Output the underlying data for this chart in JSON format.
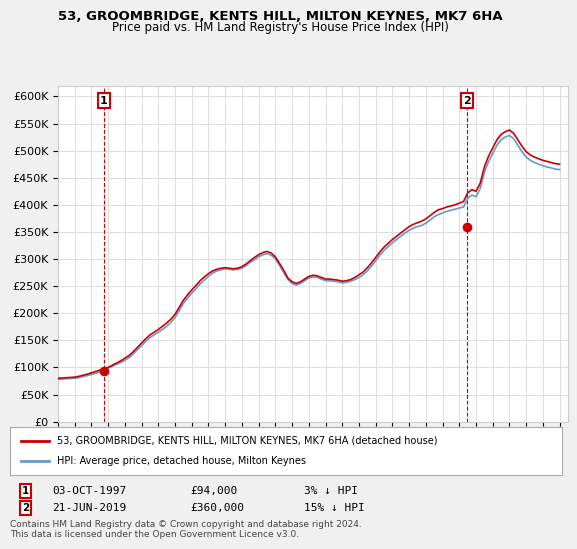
{
  "title": "53, GROOMBRIDGE, KENTS HILL, MILTON KEYNES, MK7 6HA",
  "subtitle": "Price paid vs. HM Land Registry's House Price Index (HPI)",
  "ylabel": "",
  "sale1_year": 1997.75,
  "sale1_price": 94000,
  "sale1_label": "1",
  "sale1_date": "03-OCT-1997",
  "sale1_pct": "3% ↓ HPI",
  "sale2_year": 2019.47,
  "sale2_price": 360000,
  "sale2_label": "2",
  "sale2_date": "21-JUN-2019",
  "sale2_pct": "15% ↓ HPI",
  "legend1": "53, GROOMBRIDGE, KENTS HILL, MILTON KEYNES, MK7 6HA (detached house)",
  "legend2": "HPI: Average price, detached house, Milton Keynes",
  "footnote": "Contains HM Land Registry data © Crown copyright and database right 2024.\nThis data is licensed under the Open Government Licence v3.0.",
  "hpi_years": [
    1995.0,
    1995.25,
    1995.5,
    1995.75,
    1996.0,
    1996.25,
    1996.5,
    1996.75,
    1997.0,
    1997.25,
    1997.5,
    1997.75,
    1998.0,
    1998.25,
    1998.5,
    1998.75,
    1999.0,
    1999.25,
    1999.5,
    1999.75,
    2000.0,
    2000.25,
    2000.5,
    2000.75,
    2001.0,
    2001.25,
    2001.5,
    2001.75,
    2002.0,
    2002.25,
    2002.5,
    2002.75,
    2003.0,
    2003.25,
    2003.5,
    2003.75,
    2004.0,
    2004.25,
    2004.5,
    2004.75,
    2005.0,
    2005.25,
    2005.5,
    2005.75,
    2006.0,
    2006.25,
    2006.5,
    2006.75,
    2007.0,
    2007.25,
    2007.5,
    2007.75,
    2008.0,
    2008.25,
    2008.5,
    2008.75,
    2009.0,
    2009.25,
    2009.5,
    2009.75,
    2010.0,
    2010.25,
    2010.5,
    2010.75,
    2011.0,
    2011.25,
    2011.5,
    2011.75,
    2012.0,
    2012.25,
    2012.5,
    2012.75,
    2013.0,
    2013.25,
    2013.5,
    2013.75,
    2014.0,
    2014.25,
    2014.5,
    2014.75,
    2015.0,
    2015.25,
    2015.5,
    2015.75,
    2016.0,
    2016.25,
    2016.5,
    2016.75,
    2017.0,
    2017.25,
    2017.5,
    2017.75,
    2018.0,
    2018.25,
    2018.5,
    2018.75,
    2019.0,
    2019.25,
    2019.5,
    2019.75,
    2020.0,
    2020.25,
    2020.5,
    2020.75,
    2021.0,
    2021.25,
    2021.5,
    2021.75,
    2022.0,
    2022.25,
    2022.5,
    2022.75,
    2023.0,
    2023.25,
    2023.5,
    2023.75,
    2024.0,
    2024.25,
    2024.5,
    2024.75,
    2025.0
  ],
  "hpi_values": [
    78000,
    78500,
    79000,
    79500,
    80000,
    81000,
    83000,
    85000,
    87000,
    89000,
    92000,
    96000,
    99000,
    102000,
    106000,
    109000,
    113000,
    118000,
    125000,
    133000,
    140000,
    148000,
    155000,
    160000,
    165000,
    170000,
    176000,
    183000,
    192000,
    205000,
    218000,
    228000,
    237000,
    245000,
    254000,
    261000,
    268000,
    274000,
    278000,
    280000,
    282000,
    281000,
    280000,
    281000,
    283000,
    288000,
    294000,
    299000,
    304000,
    308000,
    310000,
    307000,
    300000,
    288000,
    275000,
    262000,
    255000,
    252000,
    255000,
    260000,
    265000,
    267000,
    266000,
    263000,
    260000,
    260000,
    259000,
    258000,
    256000,
    257000,
    259000,
    262000,
    266000,
    271000,
    278000,
    287000,
    297000,
    307000,
    316000,
    323000,
    330000,
    336000,
    342000,
    348000,
    353000,
    357000,
    360000,
    362000,
    366000,
    372000,
    378000,
    382000,
    385000,
    388000,
    390000,
    392000,
    394000,
    396000,
    412000,
    418000,
    415000,
    430000,
    460000,
    480000,
    495000,
    510000,
    520000,
    525000,
    528000,
    522000,
    510000,
    498000,
    488000,
    482000,
    478000,
    475000,
    472000,
    470000,
    468000,
    466000,
    465000
  ],
  "price_line_years": [
    1995.0,
    1995.25,
    1995.5,
    1995.75,
    1996.0,
    1996.25,
    1996.5,
    1996.75,
    1997.0,
    1997.25,
    1997.5,
    1997.75,
    1998.0,
    1998.25,
    1998.5,
    1998.75,
    1999.0,
    1999.25,
    1999.5,
    1999.75,
    2000.0,
    2000.25,
    2000.5,
    2000.75,
    2001.0,
    2001.25,
    2001.5,
    2001.75,
    2002.0,
    2002.25,
    2002.5,
    2002.75,
    2003.0,
    2003.25,
    2003.5,
    2003.75,
    2004.0,
    2004.25,
    2004.5,
    2004.75,
    2005.0,
    2005.25,
    2005.5,
    2005.75,
    2006.0,
    2006.25,
    2006.5,
    2006.75,
    2007.0,
    2007.25,
    2007.5,
    2007.75,
    2008.0,
    2008.25,
    2008.5,
    2008.75,
    2009.0,
    2009.25,
    2009.5,
    2009.75,
    2010.0,
    2010.25,
    2010.5,
    2010.75,
    2011.0,
    2011.25,
    2011.5,
    2011.75,
    2012.0,
    2012.25,
    2012.5,
    2012.75,
    2013.0,
    2013.25,
    2013.5,
    2013.75,
    2014.0,
    2014.25,
    2014.5,
    2014.75,
    2015.0,
    2015.25,
    2015.5,
    2015.75,
    2016.0,
    2016.25,
    2016.5,
    2016.75,
    2017.0,
    2017.25,
    2017.5,
    2017.75,
    2018.0,
    2018.25,
    2018.5,
    2018.75,
    2019.0,
    2019.25,
    2019.5,
    2019.75,
    2020.0,
    2020.25,
    2020.5,
    2020.75,
    2021.0,
    2021.25,
    2021.5,
    2021.75,
    2022.0,
    2022.25,
    2022.5,
    2022.75,
    2023.0,
    2023.25,
    2023.5,
    2023.75,
    2024.0,
    2024.25,
    2024.5,
    2024.75,
    2025.0
  ],
  "price_line_values": [
    80000,
    80500,
    81000,
    81500,
    82000,
    83500,
    85500,
    87500,
    90000,
    92500,
    95000,
    97000,
    100000,
    104000,
    108000,
    112000,
    117000,
    122000,
    129000,
    137000,
    145000,
    153000,
    160000,
    165000,
    170000,
    176000,
    182000,
    189000,
    198000,
    211000,
    224000,
    234000,
    243000,
    251000,
    260000,
    267000,
    273000,
    278000,
    281000,
    283000,
    284000,
    283000,
    282000,
    283000,
    286000,
    291000,
    297000,
    303000,
    308000,
    312000,
    314000,
    311000,
    304000,
    292000,
    279000,
    265000,
    258000,
    255000,
    258000,
    263000,
    268000,
    270000,
    269000,
    266000,
    263000,
    263000,
    262000,
    261000,
    259000,
    260000,
    262000,
    266000,
    271000,
    276000,
    284000,
    293000,
    303000,
    313000,
    322000,
    329000,
    336000,
    342000,
    348000,
    354000,
    360000,
    364000,
    367000,
    370000,
    374000,
    380000,
    386000,
    391000,
    393000,
    396000,
    398000,
    400000,
    403000,
    406000,
    422000,
    428000,
    425000,
    440000,
    470000,
    490000,
    505000,
    520000,
    530000,
    535000,
    538000,
    532000,
    520000,
    508000,
    498000,
    492000,
    488000,
    485000,
    482000,
    480000,
    478000,
    476000,
    475000
  ],
  "ylim_max": 620000,
  "xlim_min": 1995.0,
  "xlim_max": 2025.5,
  "bg_color": "#f0f0f0",
  "plot_bg_color": "#ffffff",
  "hpi_color": "#6699cc",
  "price_color": "#cc0000",
  "sale_marker_color": "#cc0000",
  "vline_color": "#cc0000",
  "annotation_box_color": "#cc0000",
  "grid_color": "#dddddd"
}
